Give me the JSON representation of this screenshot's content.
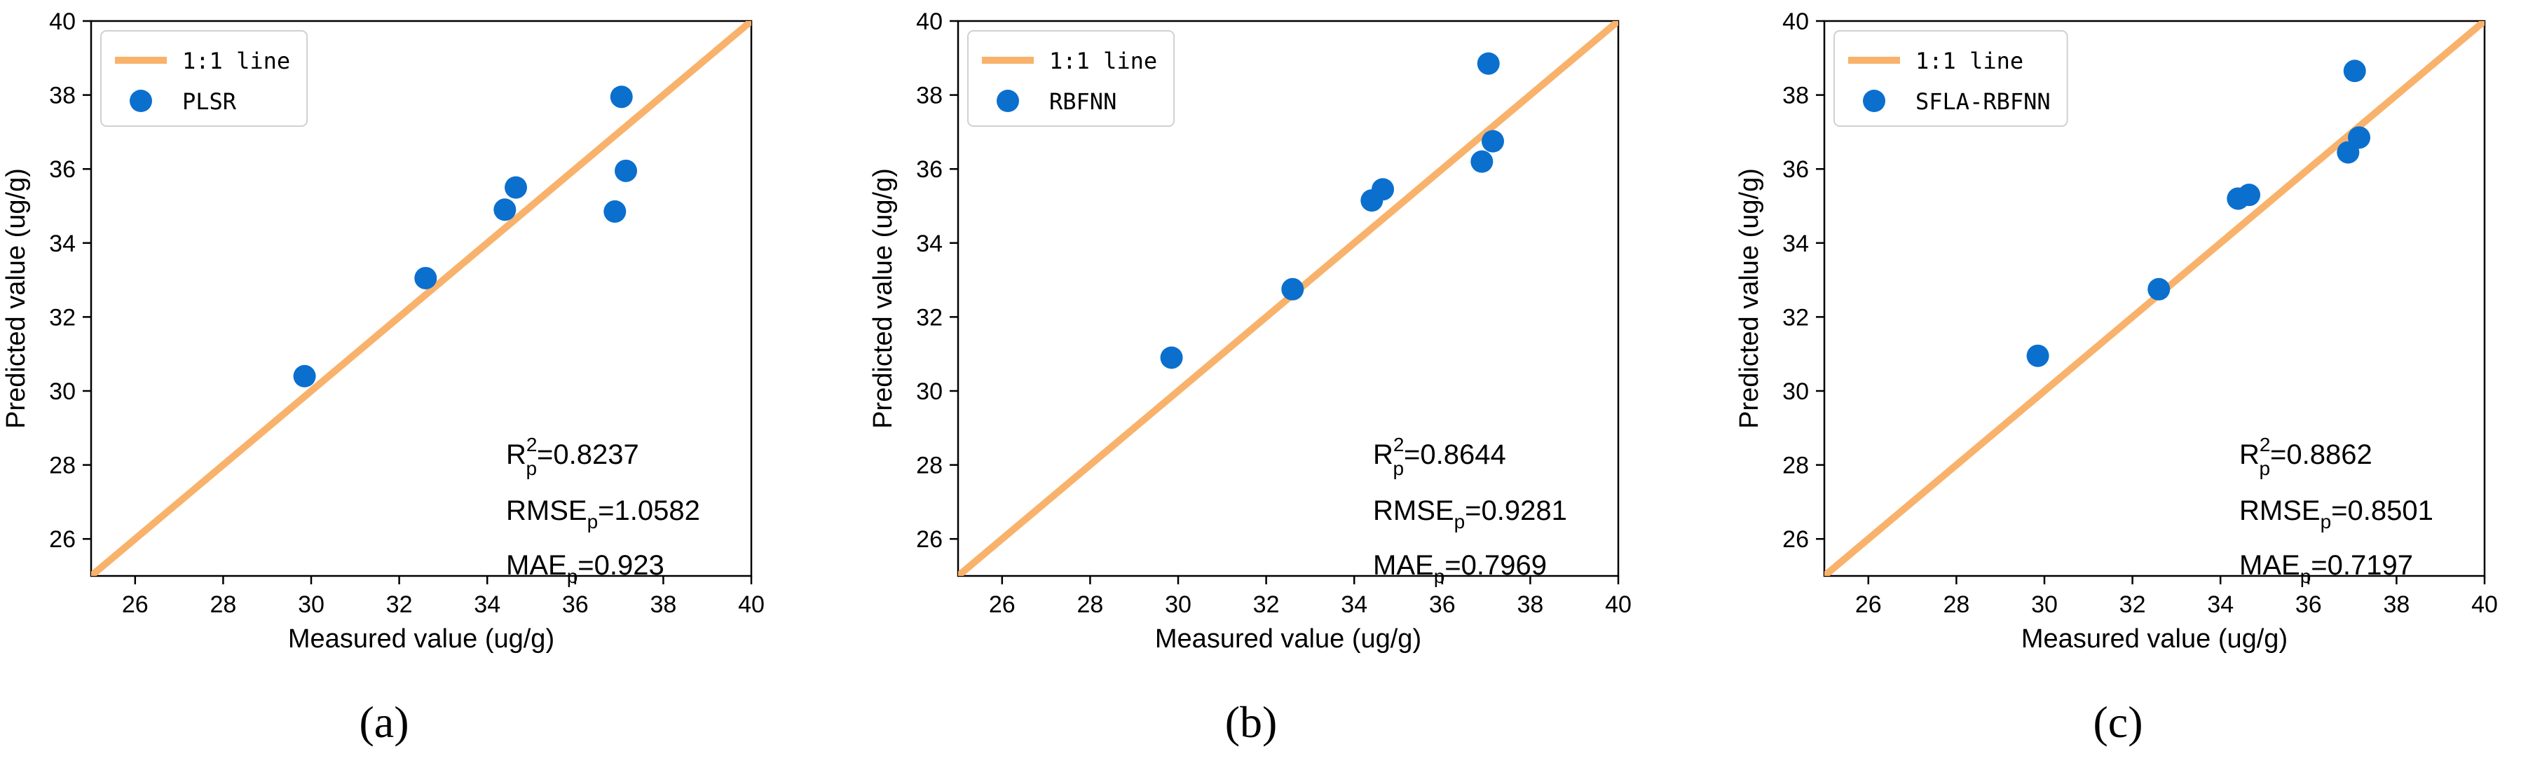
{
  "colors": {
    "line": "#f9b26b",
    "point": "#0b6fce",
    "axis": "#000000",
    "text": "#000000",
    "legend_border": "#d0d0d0"
  },
  "chart_data": [
    {
      "type": "scatter",
      "panel_label": "(a)",
      "xlabel": "Measured value (ug/g)",
      "ylabel": "Predicted value (ug/g)",
      "xlim": [
        25,
        40
      ],
      "ylim": [
        25,
        40
      ],
      "xticks": [
        26,
        28,
        30,
        32,
        34,
        36,
        38,
        40
      ],
      "yticks": [
        26,
        28,
        30,
        32,
        34,
        36,
        38,
        40
      ],
      "legend_position": "top-left",
      "series": [
        {
          "name": "1:1 line",
          "kind": "line",
          "x": [
            25,
            40
          ],
          "y": [
            25,
            40
          ]
        },
        {
          "name": "PLSR",
          "kind": "scatter",
          "x": [
            29.85,
            32.6,
            34.4,
            34.65,
            36.9,
            37.05,
            37.15
          ],
          "y": [
            30.4,
            33.05,
            34.9,
            35.5,
            34.85,
            37.95,
            35.95
          ]
        }
      ],
      "metrics": {
        "r2": "=0.8237",
        "rmse": "=1.0582",
        "mae": "=0.923"
      }
    },
    {
      "type": "scatter",
      "panel_label": "(b)",
      "xlabel": "Measured value (ug/g)",
      "ylabel": "Predicted value (ug/g)",
      "xlim": [
        25,
        40
      ],
      "ylim": [
        25,
        40
      ],
      "xticks": [
        26,
        28,
        30,
        32,
        34,
        36,
        38,
        40
      ],
      "yticks": [
        26,
        28,
        30,
        32,
        34,
        36,
        38,
        40
      ],
      "legend_position": "top-left",
      "series": [
        {
          "name": "1:1 line",
          "kind": "line",
          "x": [
            25,
            40
          ],
          "y": [
            25,
            40
          ]
        },
        {
          "name": "RBFNN",
          "kind": "scatter",
          "x": [
            29.85,
            32.6,
            34.4,
            34.65,
            36.9,
            37.05,
            37.15
          ],
          "y": [
            30.9,
            32.75,
            35.15,
            35.45,
            36.2,
            38.85,
            36.75
          ]
        }
      ],
      "metrics": {
        "r2": "=0.8644",
        "rmse": "=0.9281",
        "mae": "=0.7969"
      }
    },
    {
      "type": "scatter",
      "panel_label": "(c)",
      "xlabel": "Measured value (ug/g)",
      "ylabel": "Predicted value (ug/g)",
      "xlim": [
        25,
        40
      ],
      "ylim": [
        25,
        40
      ],
      "xticks": [
        26,
        28,
        30,
        32,
        34,
        36,
        38,
        40
      ],
      "yticks": [
        26,
        28,
        30,
        32,
        34,
        36,
        38,
        40
      ],
      "legend_position": "top-left",
      "series": [
        {
          "name": "1:1 line",
          "kind": "line",
          "x": [
            25,
            40
          ],
          "y": [
            25,
            40
          ]
        },
        {
          "name": "SFLA-RBFNN",
          "kind": "scatter",
          "x": [
            29.85,
            32.6,
            34.4,
            34.65,
            36.9,
            37.05,
            37.15
          ],
          "y": [
            30.95,
            32.75,
            35.2,
            35.3,
            36.45,
            38.65,
            36.85
          ]
        }
      ],
      "metrics": {
        "r2": "=0.8862",
        "rmse": "=0.8501",
        "mae": "=0.7197"
      }
    }
  ]
}
